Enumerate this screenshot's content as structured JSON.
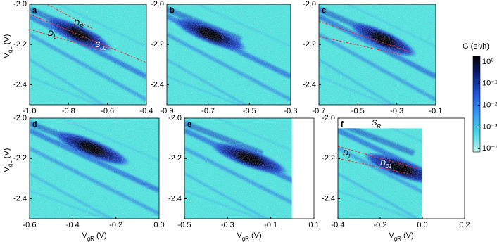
{
  "chart_data": [
    {
      "type": "heatmap",
      "panel": "a",
      "xlim": [
        -1.0,
        -0.4
      ],
      "xticks": [
        {
          "value": -1,
          "label": "-1.0"
        },
        -0.8,
        -0.6,
        -0.4
      ],
      "ylim": [
        -2.5,
        -2.0
      ],
      "yticks": [
        {
          "value": -2,
          "label": "-2.0"
        },
        -2.2,
        -2.4
      ],
      "ylabel": {
        "text": "V",
        "sub": "gL",
        "unit": "(V)"
      },
      "annotations": [
        {
          "text": "D",
          "sub": "R"
        },
        {
          "text": "D",
          "sub": "L"
        },
        {
          "text": "S",
          "sub": "00"
        }
      ]
    },
    {
      "type": "heatmap",
      "panel": "b",
      "xlim": [
        -0.9,
        -0.3
      ],
      "xticks": [
        -0.9,
        -0.7,
        -0.5,
        -0.3
      ],
      "ylim": [
        -2.5,
        -2.0
      ],
      "yticks": [
        {
          "value": -2,
          "label": "-2.0"
        },
        -2.2,
        -2.4
      ]
    },
    {
      "type": "heatmap",
      "panel": "c",
      "xlim": [
        -0.7,
        -0.1
      ],
      "xticks": [
        -0.7,
        -0.5,
        -0.3,
        -0.1
      ],
      "ylim": [
        -2.5,
        -2.0
      ],
      "yticks": [
        {
          "value": -2,
          "label": "-2.0"
        },
        -2.2,
        -2.4
      ]
    },
    {
      "type": "heatmap",
      "panel": "d",
      "xlim": [
        -0.6,
        0.0
      ],
      "xticks": [
        -0.6,
        -0.4,
        -0.2,
        {
          "value": 0,
          "label": "0.0"
        }
      ],
      "ylim": [
        -2.5,
        -2.0
      ],
      "yticks": [
        {
          "value": -2,
          "label": "-2.0"
        },
        -2.2,
        -2.4
      ],
      "xlabel": {
        "text": "V",
        "sub": "gR",
        "unit": "(V)"
      },
      "ylabel": {
        "text": "V",
        "sub": "gL",
        "unit": "(V)"
      }
    },
    {
      "type": "heatmap",
      "panel": "e",
      "xlim": [
        -0.5,
        0.1
      ],
      "xticks": [
        -0.5,
        -0.3,
        -0.1,
        0.1
      ],
      "ylim": [
        -2.5,
        -2.0
      ],
      "yticks": [
        {
          "value": -2,
          "label": "-2.0"
        },
        -2.2,
        -2.4
      ],
      "xlabel": {
        "text": "V",
        "sub": "gR",
        "unit": "(V)"
      }
    },
    {
      "type": "heatmap",
      "panel": "f",
      "xlim": [
        -0.4,
        0.2
      ],
      "xticks": [
        -0.4,
        -0.2,
        {
          "value": 0,
          "label": "0.0"
        },
        0.2
      ],
      "ylim": [
        -2.5,
        -2.0
      ],
      "yticks": [
        {
          "value": -2,
          "label": "-2.0"
        },
        -2.2,
        -2.4
      ],
      "xlabel": {
        "text": "V",
        "sub": "gR",
        "unit": "(V)"
      },
      "annotations": [
        {
          "text": "S",
          "sub": "R"
        },
        {
          "text": "D",
          "sub": "L"
        },
        {
          "text": "D",
          "sub": "01"
        }
      ]
    },
    {
      "type": "colorbar",
      "label": "G (e²/h)",
      "scale": "log",
      "lim": [
        7e-05,
        1.8
      ],
      "ticks": [
        {
          "value": 1,
          "label": "10⁰"
        },
        {
          "value": 0.1,
          "label": "10⁻¹"
        },
        {
          "value": 0.01,
          "label": "10⁻²"
        },
        {
          "value": 0.001,
          "label": "10⁻³"
        },
        {
          "value": 0.0001,
          "label": "10⁻⁴"
        }
      ]
    }
  ]
}
